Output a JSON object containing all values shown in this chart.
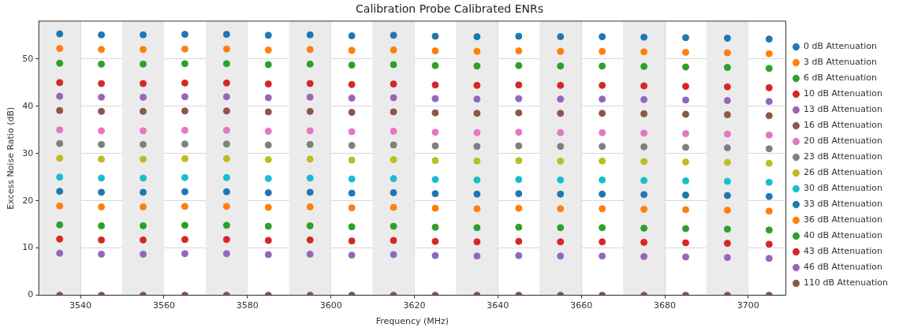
{
  "chart_data": {
    "type": "scatter",
    "title": "Calibration Probe Calibrated ENRs",
    "xlabel": "Frequency (MHz)",
    "ylabel": "Excess Noise Ratio (dB)",
    "x": [
      3535,
      3545,
      3555,
      3565,
      3575,
      3585,
      3595,
      3605,
      3615,
      3625,
      3635,
      3645,
      3655,
      3665,
      3675,
      3685,
      3695,
      3705
    ],
    "xlim": [
      3530,
      3709
    ],
    "xticks": [
      3540,
      3560,
      3580,
      3600,
      3620,
      3640,
      3660,
      3680,
      3700
    ],
    "ylim": [
      0,
      58
    ],
    "yticks": [
      0,
      10,
      20,
      30,
      40,
      50
    ],
    "grid": true,
    "legend": "right",
    "marker": "circle",
    "bands": [
      {
        "axis": "x",
        "from": 3530,
        "to": 3540,
        "color": "#ebebeb"
      },
      {
        "axis": "x",
        "from": 3550,
        "to": 3560,
        "color": "#ebebeb"
      },
      {
        "axis": "x",
        "from": 3570,
        "to": 3580,
        "color": "#ebebeb"
      },
      {
        "axis": "x",
        "from": 3590,
        "to": 3600,
        "color": "#ebebeb"
      },
      {
        "axis": "x",
        "from": 3610,
        "to": 3620,
        "color": "#ebebeb"
      },
      {
        "axis": "x",
        "from": 3630,
        "to": 3640,
        "color": "#ebebeb"
      },
      {
        "axis": "x",
        "from": 3650,
        "to": 3660,
        "color": "#ebebeb"
      },
      {
        "axis": "x",
        "from": 3670,
        "to": 3680,
        "color": "#ebebeb"
      },
      {
        "axis": "x",
        "from": 3690,
        "to": 3700,
        "color": "#ebebeb"
      }
    ],
    "series": [
      {
        "name": "0 dB Attenuation",
        "color": "#1f77b4",
        "values": [
          55.3,
          55.1,
          55.1,
          55.2,
          55.2,
          55.0,
          55.1,
          54.9,
          55.0,
          54.8,
          54.7,
          54.8,
          54.7,
          54.7,
          54.6,
          54.5,
          54.4,
          54.2
        ]
      },
      {
        "name": "3 dB Attenuation",
        "color": "#ff7f0e",
        "values": [
          52.2,
          52.0,
          52.0,
          52.1,
          52.1,
          51.9,
          52.0,
          51.8,
          51.9,
          51.7,
          51.6,
          51.7,
          51.6,
          51.6,
          51.5,
          51.4,
          51.3,
          51.1
        ]
      },
      {
        "name": "6 dB Attenuation",
        "color": "#2ca02c",
        "values": [
          49.1,
          48.9,
          48.9,
          49.0,
          49.0,
          48.8,
          48.9,
          48.7,
          48.8,
          48.6,
          48.5,
          48.6,
          48.5,
          48.5,
          48.4,
          48.3,
          48.2,
          48.0
        ]
      },
      {
        "name": "10 dB Attenuation",
        "color": "#d62728",
        "values": [
          45.0,
          44.8,
          44.8,
          44.9,
          44.9,
          44.7,
          44.8,
          44.6,
          44.7,
          44.5,
          44.4,
          44.5,
          44.4,
          44.4,
          44.3,
          44.2,
          44.1,
          43.9
        ]
      },
      {
        "name": "13 dB Attenuation",
        "color": "#9467bd",
        "values": [
          42.1,
          41.9,
          41.9,
          42.0,
          42.0,
          41.8,
          41.9,
          41.7,
          41.8,
          41.6,
          41.5,
          41.6,
          41.5,
          41.5,
          41.4,
          41.3,
          41.2,
          41.0
        ]
      },
      {
        "name": "16 dB Attenuation",
        "color": "#8c564b",
        "values": [
          39.1,
          38.9,
          38.9,
          39.0,
          39.0,
          38.8,
          38.9,
          38.7,
          38.8,
          38.6,
          38.5,
          38.6,
          38.5,
          38.5,
          38.4,
          38.3,
          38.2,
          38.0
        ]
      },
      {
        "name": "20 dB Attenuation",
        "color": "#e377c2",
        "values": [
          35.0,
          34.8,
          34.8,
          34.9,
          34.9,
          34.7,
          34.8,
          34.6,
          34.7,
          34.5,
          34.4,
          34.5,
          34.4,
          34.4,
          34.3,
          34.2,
          34.1,
          33.9
        ]
      },
      {
        "name": "23 dB Attenuation",
        "color": "#7f7f7f",
        "values": [
          32.1,
          31.9,
          31.9,
          32.0,
          32.0,
          31.8,
          31.9,
          31.7,
          31.8,
          31.6,
          31.5,
          31.6,
          31.5,
          31.5,
          31.4,
          31.3,
          31.2,
          31.0
        ]
      },
      {
        "name": "26 dB Attenuation",
        "color": "#bcbd22",
        "values": [
          29.0,
          28.8,
          28.8,
          28.9,
          28.9,
          28.7,
          28.8,
          28.6,
          28.7,
          28.5,
          28.4,
          28.5,
          28.4,
          28.4,
          28.3,
          28.2,
          28.1,
          27.9
        ]
      },
      {
        "name": "30 dB Attenuation",
        "color": "#17becf",
        "values": [
          25.0,
          24.8,
          24.8,
          24.9,
          24.9,
          24.7,
          24.8,
          24.6,
          24.7,
          24.5,
          24.4,
          24.5,
          24.4,
          24.4,
          24.3,
          24.2,
          24.1,
          23.9
        ]
      },
      {
        "name": "33 dB Attenuation",
        "color": "#1f77b4",
        "values": [
          22.0,
          21.8,
          21.8,
          21.9,
          21.9,
          21.7,
          21.8,
          21.6,
          21.7,
          21.5,
          21.4,
          21.5,
          21.4,
          21.4,
          21.3,
          21.2,
          21.1,
          20.9
        ]
      },
      {
        "name": "36 dB Attenuation",
        "color": "#ff7f0e",
        "values": [
          18.9,
          18.7,
          18.7,
          18.8,
          18.8,
          18.6,
          18.7,
          18.5,
          18.6,
          18.4,
          18.3,
          18.4,
          18.3,
          18.3,
          18.2,
          18.1,
          18.0,
          17.8
        ]
      },
      {
        "name": "40 dB Attenuation",
        "color": "#2ca02c",
        "values": [
          14.9,
          14.7,
          14.7,
          14.8,
          14.8,
          14.6,
          14.7,
          14.5,
          14.6,
          14.4,
          14.3,
          14.4,
          14.3,
          14.3,
          14.2,
          14.1,
          14.0,
          13.8
        ]
      },
      {
        "name": "43 dB Attenuation",
        "color": "#d62728",
        "values": [
          11.9,
          11.7,
          11.7,
          11.8,
          11.8,
          11.6,
          11.7,
          11.5,
          11.6,
          11.4,
          11.3,
          11.4,
          11.3,
          11.3,
          11.2,
          11.1,
          11.0,
          10.8
        ]
      },
      {
        "name": "46 dB Attenuation",
        "color": "#9467bd",
        "values": [
          8.9,
          8.7,
          8.7,
          8.8,
          8.8,
          8.6,
          8.7,
          8.5,
          8.6,
          8.4,
          8.3,
          8.4,
          8.3,
          8.3,
          8.2,
          8.1,
          8.0,
          7.8
        ]
      },
      {
        "name": "110 dB Attenuation",
        "color": "#8c564b",
        "values": [
          0,
          0,
          0,
          0,
          0,
          0,
          0,
          0,
          0,
          0,
          0,
          0,
          0,
          0,
          0,
          0,
          0,
          0
        ]
      }
    ]
  }
}
